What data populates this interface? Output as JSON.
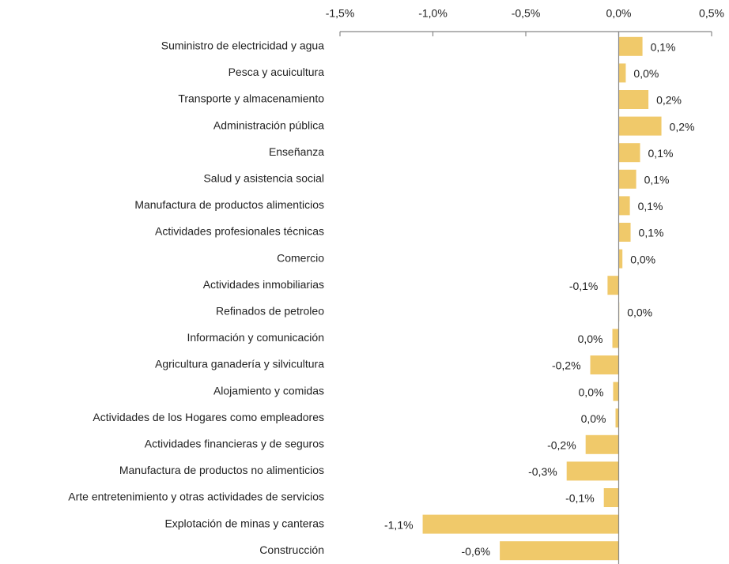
{
  "chart_data": {
    "type": "hbar",
    "color": "#f0c96a",
    "categories": [
      "Suministro de electricidad y agua",
      "Pesca y acuicultura",
      "Transporte y almacenamiento",
      "Administración pública",
      "Enseñanza",
      "Salud y asistencia social",
      "Manufactura de productos alimenticios",
      "Actividades profesionales técnicas",
      "Comercio",
      "Actividades inmobiliarias",
      "Refinados de petroleo",
      "Información y comunicación",
      "Agricultura  ganadería y silvicultura",
      "Alojamiento y comidas",
      "Actividades de los Hogares como empleadores",
      "Actividades financieras y de seguros",
      "Manufactura de productos no alimenticios",
      "Arte entretenimiento y otras actividades de servicios",
      "Explotación de minas y canteras",
      "Construcción"
    ],
    "values": [
      0.128,
      0.038,
      0.16,
      0.23,
      0.115,
      0.094,
      0.06,
      0.064,
      0.02,
      -0.06,
      0.003,
      -0.034,
      -0.153,
      -0.03,
      -0.017,
      -0.178,
      -0.28,
      -0.08,
      -1.055,
      -0.64
    ],
    "value_labels": [
      "0,1%",
      "0,0%",
      "0,2%",
      "0,2%",
      "0,1%",
      "0,1%",
      "0,1%",
      "0,1%",
      "0,0%",
      "-0,1%",
      "0,0%",
      "0,0%",
      "-0,2%",
      "0,0%",
      "0,0%",
      "-0,2%",
      "-0,3%",
      "-0,1%",
      "-1,1%",
      "-0,6%"
    ],
    "xlim": [
      -1.5,
      0.5
    ],
    "xticks": [
      {
        "value": -1.5,
        "label": "-1,5%"
      },
      {
        "value": -1.0,
        "label": "-1,0%"
      },
      {
        "value": -0.5,
        "label": "-0,5%"
      },
      {
        "value": 0,
        "label": "0,0%"
      },
      {
        "value": 0.5,
        "label": "0,5%"
      }
    ]
  }
}
